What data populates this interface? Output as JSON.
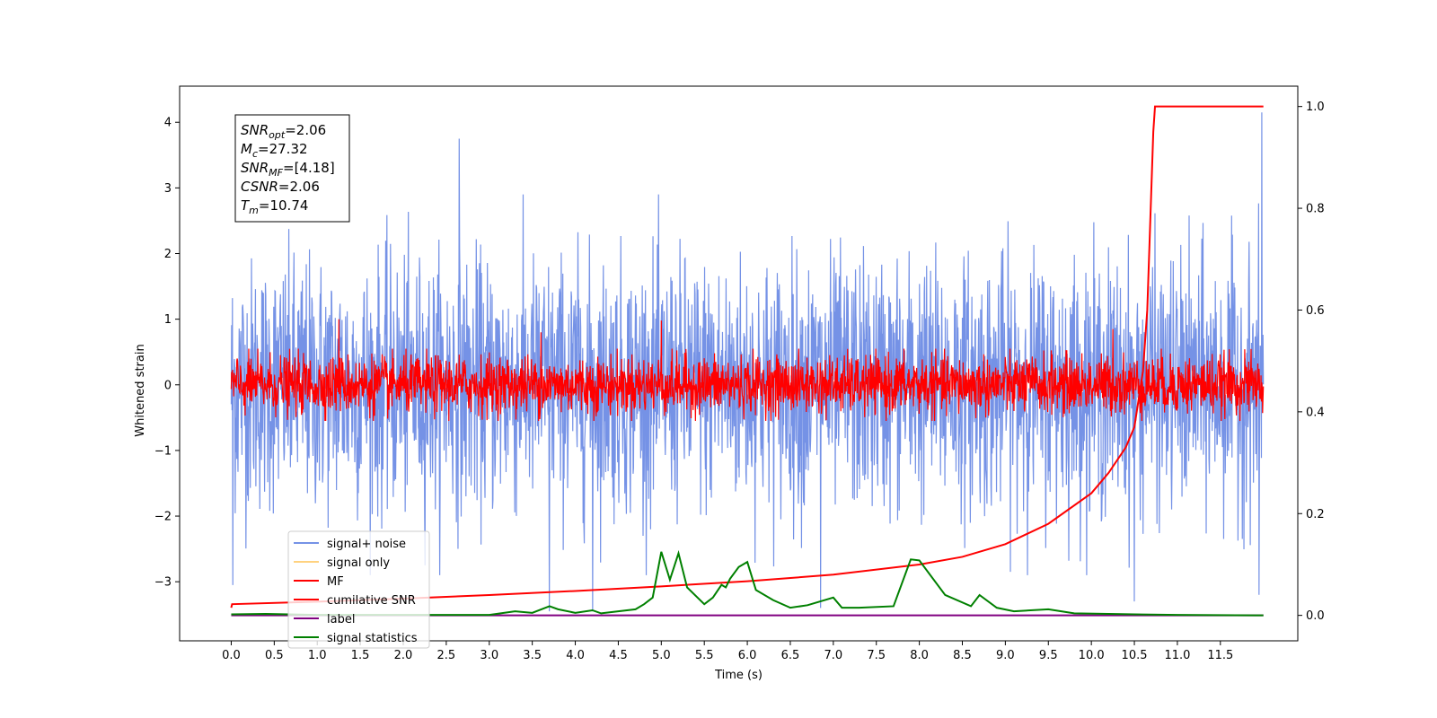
{
  "chart_data": {
    "type": "line",
    "xlabel": "Time (s)",
    "ylabel": "Whitened strain",
    "xlim": [
      -0.6,
      12.4
    ],
    "ylim": [
      -3.9,
      4.55
    ],
    "y2lim": [
      -0.05,
      1.04
    ],
    "x_ticks": [
      "0.0",
      "0.5",
      "1.0",
      "1.5",
      "2.0",
      "2.5",
      "3.0",
      "3.5",
      "4.0",
      "4.5",
      "5.0",
      "5.5",
      "6.0",
      "6.5",
      "7.0",
      "7.5",
      "8.0",
      "8.5",
      "9.0",
      "9.5",
      "10.0",
      "10.5",
      "11.0",
      "11.5"
    ],
    "y_ticks": [
      -3,
      -2,
      -1,
      0,
      1,
      2,
      3,
      4
    ],
    "y_tick_labels": [
      "−3",
      "−2",
      "−1",
      "0",
      "1",
      "2",
      "3",
      "4"
    ],
    "y2_ticks": [
      "0.0",
      "0.2",
      "0.4",
      "0.6",
      "0.8",
      "1.0"
    ],
    "grid": false,
    "legend_position": "lower-left",
    "annotation": {
      "lines": [
        {
          "base": "SNR",
          "sub": "opt",
          "rest": "=2.06"
        },
        {
          "base": "M",
          "sub": "c",
          "rest": "=27.32"
        },
        {
          "base": "SNR",
          "sub": "MF",
          "rest": "=[4.18]"
        },
        {
          "base": "CSNR",
          "sub": "",
          "rest": "=2.06"
        },
        {
          "base": "T",
          "sub": "m",
          "rest": "=10.74"
        }
      ]
    },
    "series": [
      {
        "name": "signal+ noise",
        "color": "#7592e6",
        "axis": "left",
        "description_stats": {
          "x_range": [
            0.0,
            12.0
          ],
          "typical_band": [
            -1.5,
            1.5
          ],
          "max": 3.75,
          "min": -3.05
        }
      },
      {
        "name": "signal only",
        "color": "#ffd27f",
        "axis": "left"
      },
      {
        "name": "MF",
        "color": "#ff0000",
        "axis": "left",
        "description_stats": {
          "x_range": [
            0.0,
            12.0
          ],
          "typical_band": [
            -0.4,
            0.4
          ],
          "max": 1.0,
          "min": -0.45
        }
      },
      {
        "name": "cumilative SNR",
        "color": "#ff0000",
        "axis": "right",
        "x": [
          0.0,
          0.01,
          1.0,
          2.0,
          3.0,
          4.0,
          5.0,
          6.0,
          7.0,
          8.0,
          8.5,
          9.0,
          9.5,
          10.0,
          10.2,
          10.4,
          10.5,
          10.6,
          10.65,
          10.7,
          10.72,
          10.74,
          10.76,
          12.0
        ],
        "y": [
          0.015,
          0.022,
          0.027,
          0.033,
          0.04,
          0.048,
          0.057,
          0.067,
          0.08,
          0.1,
          0.115,
          0.14,
          0.18,
          0.24,
          0.28,
          0.33,
          0.37,
          0.48,
          0.6,
          0.85,
          0.95,
          1.0,
          1.0,
          1.0
        ]
      },
      {
        "name": "label",
        "color": "#800080",
        "axis": "right",
        "x": [
          0.0,
          12.0
        ],
        "y": [
          0.0,
          0.0
        ]
      },
      {
        "name": "signal statistics",
        "color": "#008000",
        "axis": "right",
        "x": [
          0.0,
          0.4,
          1.0,
          2.0,
          3.0,
          3.3,
          3.5,
          3.7,
          3.8,
          4.0,
          4.2,
          4.3,
          4.7,
          4.8,
          4.9,
          5.0,
          5.1,
          5.2,
          5.3,
          5.5,
          5.6,
          5.7,
          5.75,
          5.8,
          5.9,
          6.0,
          6.1,
          6.3,
          6.5,
          6.7,
          7.0,
          7.1,
          7.3,
          7.7,
          7.9,
          8.0,
          8.3,
          8.6,
          8.7,
          8.9,
          9.1,
          9.5,
          9.8,
          10.2,
          10.5,
          11.0,
          12.0
        ],
        "y": [
          0.002,
          0.003,
          0.001,
          0.001,
          0.001,
          0.008,
          0.005,
          0.018,
          0.012,
          0.005,
          0.01,
          0.004,
          0.012,
          0.022,
          0.035,
          0.125,
          0.07,
          0.122,
          0.055,
          0.022,
          0.035,
          0.06,
          0.055,
          0.072,
          0.095,
          0.105,
          0.05,
          0.03,
          0.015,
          0.02,
          0.035,
          0.015,
          0.015,
          0.018,
          0.11,
          0.108,
          0.04,
          0.018,
          0.04,
          0.015,
          0.008,
          0.012,
          0.004,
          0.003,
          0.002,
          0.001,
          0.0
        ]
      }
    ]
  }
}
